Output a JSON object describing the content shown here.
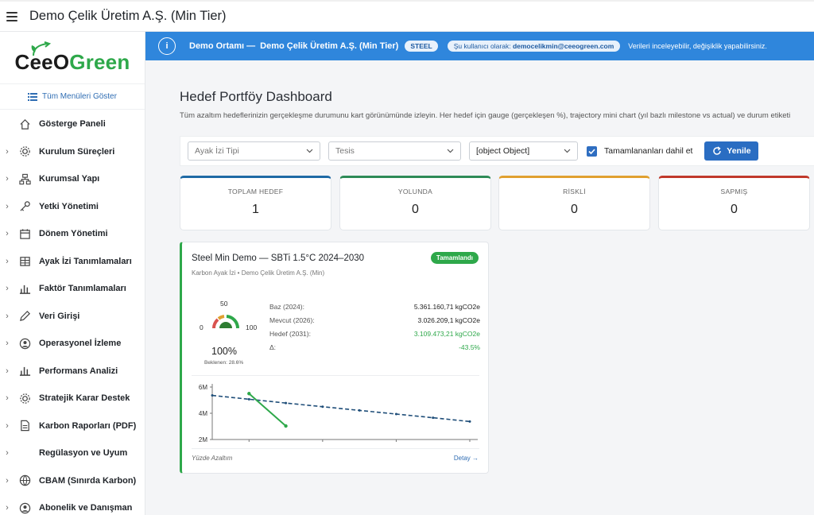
{
  "app": {
    "title": "Demo Çelik Üretim A.Ş. (Min Tier)"
  },
  "logo": {
    "part1": "CeeO",
    "part2": "Green"
  },
  "sidebar": {
    "show_all": "Tüm Menüleri Göster",
    "items": [
      {
        "label": "Gösterge Paneli",
        "icon": "home-icon",
        "expandable": false
      },
      {
        "label": "Kurulum Süreçleri",
        "icon": "gear-icon",
        "expandable": true
      },
      {
        "label": "Kurumsal Yapı",
        "icon": "org-icon",
        "expandable": true
      },
      {
        "label": "Yetki Yönetimi",
        "icon": "key-icon",
        "expandable": true
      },
      {
        "label": "Dönem Yönetimi",
        "icon": "calendar-icon",
        "expandable": true
      },
      {
        "label": "Ayak İzi Tanımlamaları",
        "icon": "building-icon",
        "expandable": true
      },
      {
        "label": "Faktör Tanımlamaları",
        "icon": "chart-bar-icon",
        "expandable": true
      },
      {
        "label": "Veri Girişi",
        "icon": "pencil-icon",
        "expandable": true
      },
      {
        "label": "Operasyonel İzleme",
        "icon": "user-circle-icon",
        "expandable": true
      },
      {
        "label": "Performans Analizi",
        "icon": "chart-bar-icon",
        "expandable": true
      },
      {
        "label": "Stratejik Karar Destek",
        "icon": "gear-icon",
        "expandable": true
      },
      {
        "label": "Karbon Raporları (PDF)",
        "icon": "document-icon",
        "expandable": true
      },
      {
        "label": "Regülasyon ve Uyum",
        "icon": "",
        "expandable": true
      },
      {
        "label": "CBAM (Sınırda Karbon)",
        "icon": "globe-icon",
        "expandable": true
      },
      {
        "label": "Abonelik ve Danışman",
        "icon": "user-circle-icon",
        "expandable": true
      }
    ]
  },
  "banner": {
    "title": "Demo Ortamı —",
    "company": "Demo Çelik Üretim A.Ş. (Min Tier)",
    "tier": "STEEL",
    "user_prefix": "Şu kullanıcı olarak:",
    "user_email": "democelikmin@ceeogreen.com",
    "note": "Verileri inceleyebilir, değişiklik yapabilirsiniz."
  },
  "page": {
    "title": "Hedef Portföy Dashboard",
    "description": "Tüm azaltım hedeflerinizin gerçekleşme durumunu kart görünümünde izleyin. Her hedef için gauge (gerçekleşen %), trajectory mini chart (yıl bazlı milestone vs actual) ve durum etiketi"
  },
  "filters": {
    "footprint_placeholder": "Ayak İzi Tipi",
    "facility_placeholder": "Tesis",
    "third_value": "[object Object]",
    "include_completed_label": "Tamamlananları dahil et",
    "include_completed": true,
    "refresh_label": "Yenile"
  },
  "kpis": [
    {
      "label": "TOPLAM HEDEF",
      "value": "1",
      "color": "#1f6aa5"
    },
    {
      "label": "YOLUNDA",
      "value": "0",
      "color": "#2e8b57"
    },
    {
      "label": "RİSKLİ",
      "value": "0",
      "color": "#e0a030"
    },
    {
      "label": "SAPMIŞ",
      "value": "0",
      "color": "#c0392b"
    }
  ],
  "target_card": {
    "title": "Steel Min Demo — SBTi 1.5°C 2024–2030",
    "subtitle": "Karbon Ayak İzi • Demo Çelik Üretim A.Ş. (Min)",
    "status": "Tamamlandı",
    "gauge": {
      "min_label": "0",
      "mid_label": "50",
      "max_label": "100",
      "value_label": "100%",
      "value": 100,
      "expected_label": "Beklenen: 28.6%"
    },
    "metrics": [
      {
        "label": "Baz (2024):",
        "value": "5.361.160,71 kgCO2e",
        "green": false
      },
      {
        "label": "Mevcut (2026):",
        "value": "3.026.209,1 kgCO2e",
        "green": false
      },
      {
        "label": "Hedef (2031):",
        "value": "3.109.473,21 kgCO2e",
        "green": true
      },
      {
        "label": "Δ:",
        "value": "-43.5%",
        "green": true
      }
    ],
    "footer_left": "Yüzde Azaltım",
    "footer_right": "Detay →"
  },
  "chart_data": {
    "type": "line",
    "y_tick_labels": [
      "6M",
      "4M",
      "2M"
    ],
    "ylim": [
      2,
      6
    ],
    "series": [
      {
        "style": "dashed",
        "color": "#1f4e79",
        "values": [
          5.36,
          5.07,
          4.78,
          4.5,
          4.22,
          3.94,
          3.66,
          3.37
        ]
      },
      {
        "style": "solid",
        "color": "#2ea84a",
        "values": [
          null,
          5.5,
          3.03
        ]
      }
    ],
    "grid": false
  },
  "colors": {
    "accent": "#2f86dc",
    "brand_green": "#2ea84a"
  }
}
